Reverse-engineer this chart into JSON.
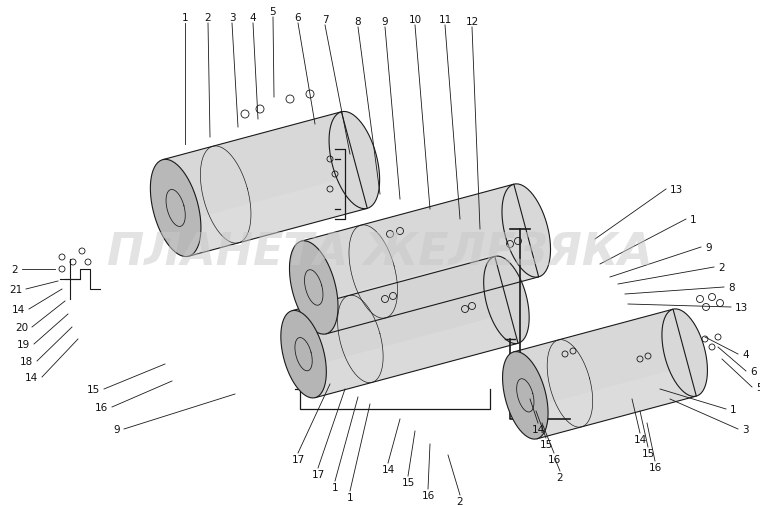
{
  "background_color": "#ffffff",
  "fig_width": 7.6,
  "fig_height": 5.06,
  "dpi": 100,
  "watermark_text": "ПЛАНЕТА ЖЕЛЕЗЯКА",
  "watermark_color": "#c8c8c8",
  "watermark_alpha": 0.5,
  "watermark_fontsize": 32,
  "line_color": "#1a1a1a",
  "fill_light": "#d5d5d5",
  "fill_medium": "#bbbbbb",
  "fill_dark": "#999999",
  "fill_shadow": "#e8e8e8",
  "label_fontsize": 7.5
}
